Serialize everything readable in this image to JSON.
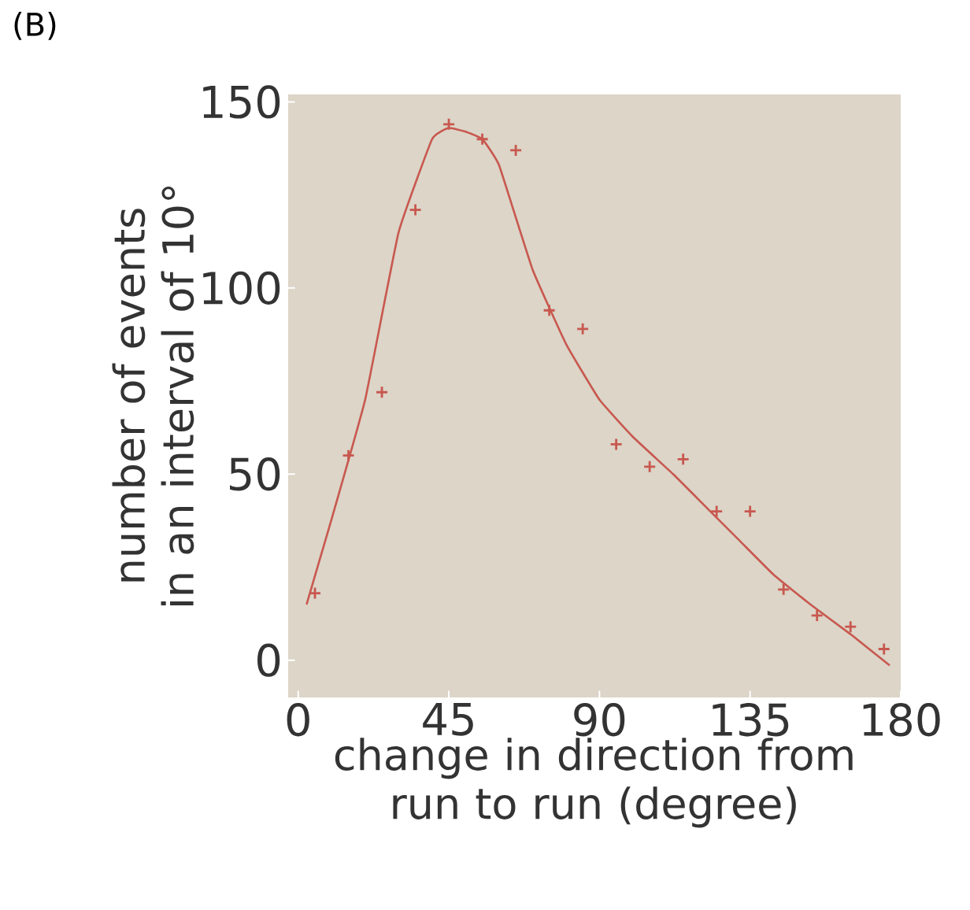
{
  "chart_data": {
    "type": "scatter",
    "title": "(B)",
    "xlabel": "change in direction from run to run (degree)",
    "ylabel": "number of events in an interval of 10°",
    "xlim": [
      -3,
      180
    ],
    "ylim": [
      -10,
      152
    ],
    "xticks": [
      0,
      45,
      90,
      135,
      180
    ],
    "yticks": [
      0,
      50,
      100,
      150
    ],
    "grid": false,
    "series": [
      {
        "marker": "cross",
        "color": "#c8584f",
        "x": [
          5,
          15,
          25,
          35,
          45,
          55,
          65,
          75,
          85,
          95,
          105,
          115,
          125,
          135,
          145,
          155,
          165,
          175
        ],
        "values": [
          18,
          55,
          72,
          121,
          144,
          140,
          137,
          94,
          89,
          58,
          52,
          54,
          40,
          40,
          19,
          12,
          9,
          3
        ]
      },
      {
        "type": "line",
        "marker": "none",
        "line_style": "solid",
        "color": "#c8584f",
        "x": [
          2.5,
          10,
          20,
          30,
          40,
          45,
          50,
          55,
          60,
          70,
          80,
          90,
          100,
          112,
          122,
          132,
          142,
          153,
          165,
          176.7
        ],
        "values": [
          15,
          38,
          70,
          115,
          140,
          143,
          142,
          140,
          133,
          105,
          85,
          70,
          60,
          50,
          41,
          32,
          23,
          15,
          7,
          -1.4
        ]
      }
    ]
  }
}
